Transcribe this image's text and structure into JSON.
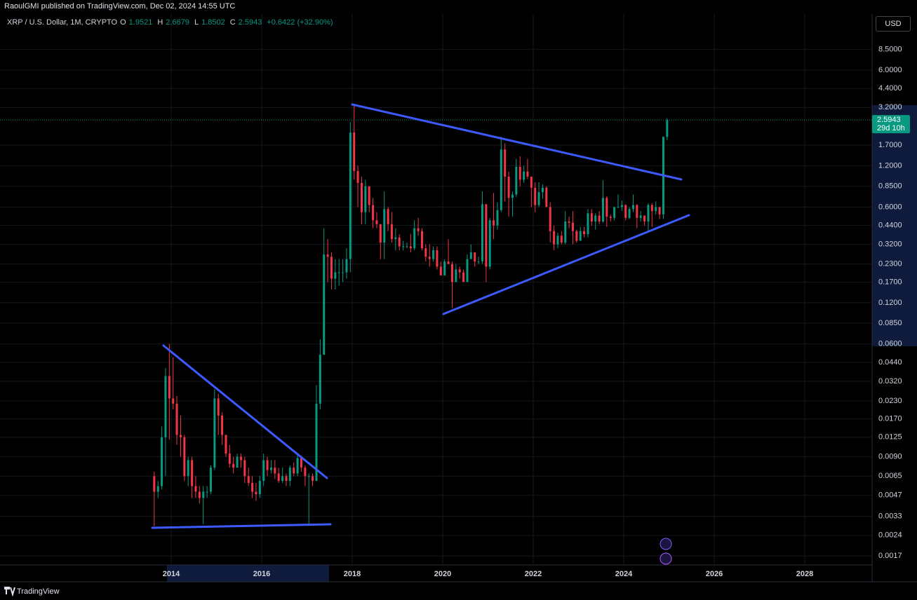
{
  "header": "RaoulGMI published on TradingView.com, Dec 02, 2024 14:55 UTC",
  "footer": "TradingView",
  "currency": "USD",
  "chart_data": {
    "type": "candlestick",
    "title": "XRP / U.S. Dollar, 1M, CRYPTO",
    "ohlc_labels": [
      "O",
      "H",
      "L",
      "C"
    ],
    "change": "+0.6422 (+32.90%)",
    "countdown": "29d 10h",
    "log_scale": true,
    "grid": true,
    "up_color": "#089981",
    "down_color": "#f23645",
    "xlim": [
      2010.217,
      2029.488
    ],
    "xticks": [
      2014,
      2016,
      2018,
      2020,
      2022,
      2024,
      2026,
      2028
    ],
    "ylim": [
      0.00146,
      15.4
    ],
    "yticks": [
      {
        "value": 8.5,
        "label": "8.5000"
      },
      {
        "value": 6,
        "label": "6.0000"
      },
      {
        "value": 4.4,
        "label": "4.4000"
      },
      {
        "value": 3.2,
        "label": "3.2000"
      },
      {
        "value": 1.7,
        "label": "1.7000"
      },
      {
        "value": 1.2,
        "label": "1.2000"
      },
      {
        "value": 0.85,
        "label": "0.8500"
      },
      {
        "value": 0.6,
        "label": "0.6000"
      },
      {
        "value": 0.44,
        "label": "0.4400"
      },
      {
        "value": 0.32,
        "label": "0.3200"
      },
      {
        "value": 0.23,
        "label": "0.2300"
      },
      {
        "value": 0.17,
        "label": "0.1700"
      },
      {
        "value": 0.12,
        "label": "0.1200"
      },
      {
        "value": 0.085,
        "label": "0.0850"
      },
      {
        "value": 0.06,
        "label": "0.0600"
      },
      {
        "value": 0.044,
        "label": "0.0440"
      },
      {
        "value": 0.032,
        "label": "0.0320"
      },
      {
        "value": 0.023,
        "label": "0.0230"
      },
      {
        "value": 0.017,
        "label": "0.0170"
      },
      {
        "value": 0.0125,
        "label": "0.0125"
      },
      {
        "value": 0.009,
        "label": "0.0090"
      },
      {
        "value": 0.0065,
        "label": "0.0065"
      },
      {
        "value": 0.0047,
        "label": "0.0047"
      },
      {
        "value": 0.0033,
        "label": "0.0033"
      },
      {
        "value": 0.0024,
        "label": "0.0024"
      },
      {
        "value": 0.0017,
        "label": "0.0017"
      }
    ],
    "x": [
      2013.583,
      2013.667,
      2013.75,
      2013.833,
      2013.917,
      2014,
      2014.083,
      2014.167,
      2014.25,
      2014.333,
      2014.417,
      2014.5,
      2014.583,
      2014.667,
      2014.75,
      2014.833,
      2014.917,
      2015,
      2015.083,
      2015.167,
      2015.25,
      2015.333,
      2015.417,
      2015.5,
      2015.583,
      2015.667,
      2015.75,
      2015.833,
      2015.917,
      2016,
      2016.083,
      2016.167,
      2016.25,
      2016.333,
      2016.417,
      2016.5,
      2016.583,
      2016.667,
      2016.75,
      2016.833,
      2016.917,
      2017,
      2017.083,
      2017.167,
      2017.25,
      2017.333,
      2017.417,
      2017.5,
      2017.583,
      2017.667,
      2017.75,
      2017.833,
      2017.917,
      2018,
      2018.083,
      2018.167,
      2018.25,
      2018.333,
      2018.417,
      2018.5,
      2018.583,
      2018.667,
      2018.75,
      2018.833,
      2018.917,
      2019,
      2019.083,
      2019.167,
      2019.25,
      2019.333,
      2019.417,
      2019.5,
      2019.583,
      2019.667,
      2019.75,
      2019.833,
      2019.917,
      2020,
      2020.083,
      2020.167,
      2020.25,
      2020.333,
      2020.417,
      2020.5,
      2020.583,
      2020.667,
      2020.75,
      2020.833,
      2020.917,
      2021,
      2021.083,
      2021.167,
      2021.25,
      2021.333,
      2021.417,
      2021.5,
      2021.583,
      2021.667,
      2021.75,
      2021.833,
      2021.917,
      2022,
      2022.083,
      2022.167,
      2022.25,
      2022.333,
      2022.417,
      2022.5,
      2022.583,
      2022.667,
      2022.75,
      2022.833,
      2022.917,
      2023,
      2023.083,
      2023.167,
      2023.25,
      2023.333,
      2023.417,
      2023.5,
      2023.583,
      2023.667,
      2023.75,
      2023.833,
      2023.917,
      2024,
      2024.083,
      2024.167,
      2024.25,
      2024.333,
      2024.417,
      2024.5,
      2024.583,
      2024.667,
      2024.75,
      2024.833,
      2024.917
    ],
    "ohlc": [
      [
        0.0065,
        0.007,
        0.0028,
        0.005
      ],
      [
        0.005,
        0.006,
        0.0045,
        0.0055
      ],
      [
        0.0055,
        0.015,
        0.0052,
        0.0125
      ],
      [
        0.0125,
        0.04,
        0.0065,
        0.035
      ],
      [
        0.035,
        0.06,
        0.012,
        0.024
      ],
      [
        0.024,
        0.048,
        0.02,
        0.022
      ],
      [
        0.022,
        0.025,
        0.011,
        0.013
      ],
      [
        0.013,
        0.018,
        0.009,
        0.0125
      ],
      [
        0.0125,
        0.013,
        0.006,
        0.0065
      ],
      [
        0.0065,
        0.009,
        0.0055,
        0.0085
      ],
      [
        0.0085,
        0.009,
        0.0045,
        0.0055
      ],
      [
        0.0055,
        0.0065,
        0.0045,
        0.005
      ],
      [
        0.005,
        0.0055,
        0.0041,
        0.0045
      ],
      [
        0.0045,
        0.0055,
        0.0029,
        0.005
      ],
      [
        0.005,
        0.0055,
        0.0045,
        0.005
      ],
      [
        0.005,
        0.0078,
        0.0048,
        0.0075
      ],
      [
        0.0075,
        0.028,
        0.0072,
        0.024
      ],
      [
        0.024,
        0.026,
        0.013,
        0.018
      ],
      [
        0.018,
        0.019,
        0.011,
        0.013
      ],
      [
        0.013,
        0.013,
        0.009,
        0.0095
      ],
      [
        0.0095,
        0.011,
        0.0075,
        0.008
      ],
      [
        0.008,
        0.009,
        0.0068,
        0.0075
      ],
      [
        0.0075,
        0.0095,
        0.0075,
        0.009
      ],
      [
        0.009,
        0.0095,
        0.0075,
        0.0085
      ],
      [
        0.0085,
        0.009,
        0.0058,
        0.0065
      ],
      [
        0.0065,
        0.0075,
        0.0055,
        0.0058
      ],
      [
        0.0058,
        0.0065,
        0.0045,
        0.005
      ],
      [
        0.005,
        0.0058,
        0.0043,
        0.0048
      ],
      [
        0.0048,
        0.0065,
        0.0045,
        0.006
      ],
      [
        0.006,
        0.0095,
        0.0055,
        0.0085
      ],
      [
        0.0085,
        0.009,
        0.0065,
        0.0072
      ],
      [
        0.0072,
        0.0085,
        0.0068,
        0.0075
      ],
      [
        0.0075,
        0.0085,
        0.0062,
        0.0068
      ],
      [
        0.0068,
        0.0075,
        0.0058,
        0.006
      ],
      [
        0.006,
        0.0075,
        0.0058,
        0.0065
      ],
      [
        0.0065,
        0.0068,
        0.0055,
        0.006
      ],
      [
        0.006,
        0.0078,
        0.0055,
        0.0075
      ],
      [
        0.0075,
        0.0082,
        0.0065,
        0.0068
      ],
      [
        0.0068,
        0.0095,
        0.0065,
        0.0088
      ],
      [
        0.0088,
        0.0092,
        0.007,
        0.0075
      ],
      [
        0.0075,
        0.0078,
        0.0055,
        0.0065
      ],
      [
        0.0065,
        0.0068,
        0.0029,
        0.0065
      ],
      [
        0.0065,
        0.0068,
        0.0055,
        0.006
      ],
      [
        0.006,
        0.03,
        0.006,
        0.022
      ],
      [
        0.022,
        0.065,
        0.02,
        0.05
      ],
      [
        0.05,
        0.42,
        0.05,
        0.27
      ],
      [
        0.27,
        0.35,
        0.17,
        0.26
      ],
      [
        0.26,
        0.28,
        0.15,
        0.18
      ],
      [
        0.18,
        0.25,
        0.15,
        0.2
      ],
      [
        0.2,
        0.25,
        0.16,
        0.2
      ],
      [
        0.2,
        0.25,
        0.17,
        0.2
      ],
      [
        0.2,
        0.3,
        0.18,
        0.25
      ],
      [
        0.25,
        2.5,
        0.2,
        2.1
      ],
      [
        2.1,
        3.4,
        0.95,
        1.1
      ],
      [
        1.1,
        1.2,
        0.6,
        0.9
      ],
      [
        0.9,
        1.0,
        0.45,
        0.55
      ],
      [
        0.55,
        0.95,
        0.45,
        0.85
      ],
      [
        0.85,
        0.85,
        0.55,
        0.62
      ],
      [
        0.62,
        0.7,
        0.42,
        0.48
      ],
      [
        0.48,
        0.55,
        0.42,
        0.45
      ],
      [
        0.45,
        0.45,
        0.25,
        0.33
      ],
      [
        0.33,
        0.78,
        0.25,
        0.58
      ],
      [
        0.58,
        0.6,
        0.4,
        0.45
      ],
      [
        0.45,
        0.55,
        0.33,
        0.35
      ],
      [
        0.35,
        0.42,
        0.29,
        0.36
      ],
      [
        0.36,
        0.38,
        0.29,
        0.31
      ],
      [
        0.31,
        0.34,
        0.29,
        0.31
      ],
      [
        0.31,
        0.33,
        0.3,
        0.31
      ],
      [
        0.31,
        0.38,
        0.28,
        0.3
      ],
      [
        0.3,
        0.48,
        0.29,
        0.42
      ],
      [
        0.42,
        0.5,
        0.37,
        0.4
      ],
      [
        0.4,
        0.42,
        0.29,
        0.3
      ],
      [
        0.3,
        0.32,
        0.24,
        0.26
      ],
      [
        0.26,
        0.32,
        0.22,
        0.25
      ],
      [
        0.25,
        0.31,
        0.24,
        0.29
      ],
      [
        0.29,
        0.31,
        0.21,
        0.22
      ],
      [
        0.22,
        0.24,
        0.19,
        0.19
      ],
      [
        0.19,
        0.25,
        0.19,
        0.24
      ],
      [
        0.24,
        0.35,
        0.23,
        0.23
      ],
      [
        0.23,
        0.24,
        0.11,
        0.17
      ],
      [
        0.17,
        0.23,
        0.17,
        0.21
      ],
      [
        0.21,
        0.22,
        0.18,
        0.2
      ],
      [
        0.2,
        0.21,
        0.17,
        0.17
      ],
      [
        0.17,
        0.27,
        0.17,
        0.25
      ],
      [
        0.25,
        0.32,
        0.25,
        0.28
      ],
      [
        0.28,
        0.28,
        0.22,
        0.24
      ],
      [
        0.24,
        0.26,
        0.23,
        0.24
      ],
      [
        0.24,
        0.78,
        0.23,
        0.63
      ],
      [
        0.63,
        0.63,
        0.17,
        0.22
      ],
      [
        0.22,
        0.5,
        0.21,
        0.48
      ],
      [
        0.48,
        0.76,
        0.35,
        0.44
      ],
      [
        0.44,
        0.65,
        0.41,
        0.57
      ],
      [
        0.57,
        1.96,
        0.55,
        1.58
      ],
      [
        1.58,
        1.75,
        0.66,
        1.0
      ],
      [
        1.0,
        1.09,
        0.51,
        0.7
      ],
      [
        0.7,
        0.78,
        0.51,
        0.74
      ],
      [
        0.74,
        1.35,
        0.71,
        1.18
      ],
      [
        1.18,
        1.41,
        0.85,
        0.95
      ],
      [
        0.95,
        1.2,
        0.9,
        1.09
      ],
      [
        1.09,
        1.35,
        0.96,
        1.0
      ],
      [
        1.0,
        1.0,
        0.6,
        0.83
      ],
      [
        0.83,
        0.91,
        0.55,
        0.62
      ],
      [
        0.62,
        0.91,
        0.6,
        0.77
      ],
      [
        0.77,
        0.88,
        0.69,
        0.83
      ],
      [
        0.83,
        0.85,
        0.6,
        0.6
      ],
      [
        0.6,
        0.65,
        0.33,
        0.4
      ],
      [
        0.4,
        0.44,
        0.29,
        0.32
      ],
      [
        0.32,
        0.39,
        0.3,
        0.37
      ],
      [
        0.37,
        0.4,
        0.32,
        0.33
      ],
      [
        0.33,
        0.56,
        0.32,
        0.47
      ],
      [
        0.47,
        0.51,
        0.42,
        0.46
      ],
      [
        0.46,
        0.56,
        0.32,
        0.4
      ],
      [
        0.4,
        0.41,
        0.33,
        0.34
      ],
      [
        0.34,
        0.43,
        0.34,
        0.4
      ],
      [
        0.4,
        0.43,
        0.36,
        0.38
      ],
      [
        0.38,
        0.58,
        0.36,
        0.54
      ],
      [
        0.54,
        0.58,
        0.44,
        0.47
      ],
      [
        0.47,
        0.54,
        0.41,
        0.52
      ],
      [
        0.52,
        0.56,
        0.45,
        0.47
      ],
      [
        0.47,
        0.94,
        0.46,
        0.7
      ],
      [
        0.7,
        0.72,
        0.43,
        0.51
      ],
      [
        0.51,
        0.53,
        0.47,
        0.5
      ],
      [
        0.5,
        0.57,
        0.48,
        0.6
      ],
      [
        0.6,
        0.74,
        0.59,
        0.6
      ],
      [
        0.6,
        0.67,
        0.56,
        0.62
      ],
      [
        0.62,
        0.63,
        0.48,
        0.5
      ],
      [
        0.5,
        0.6,
        0.49,
        0.58
      ],
      [
        0.58,
        0.74,
        0.55,
        0.62
      ],
      [
        0.62,
        0.63,
        0.42,
        0.5
      ],
      [
        0.5,
        0.56,
        0.47,
        0.52
      ],
      [
        0.52,
        0.52,
        0.44,
        0.47
      ],
      [
        0.47,
        0.64,
        0.4,
        0.62
      ],
      [
        0.62,
        0.64,
        0.43,
        0.56
      ],
      [
        0.56,
        0.66,
        0.53,
        0.6
      ],
      [
        0.6,
        0.6,
        0.49,
        0.53
      ],
      [
        0.53,
        1.97,
        0.49,
        1.9521
      ],
      [
        1.9521,
        2.6679,
        1.8502,
        2.5943
      ]
    ]
  }
}
